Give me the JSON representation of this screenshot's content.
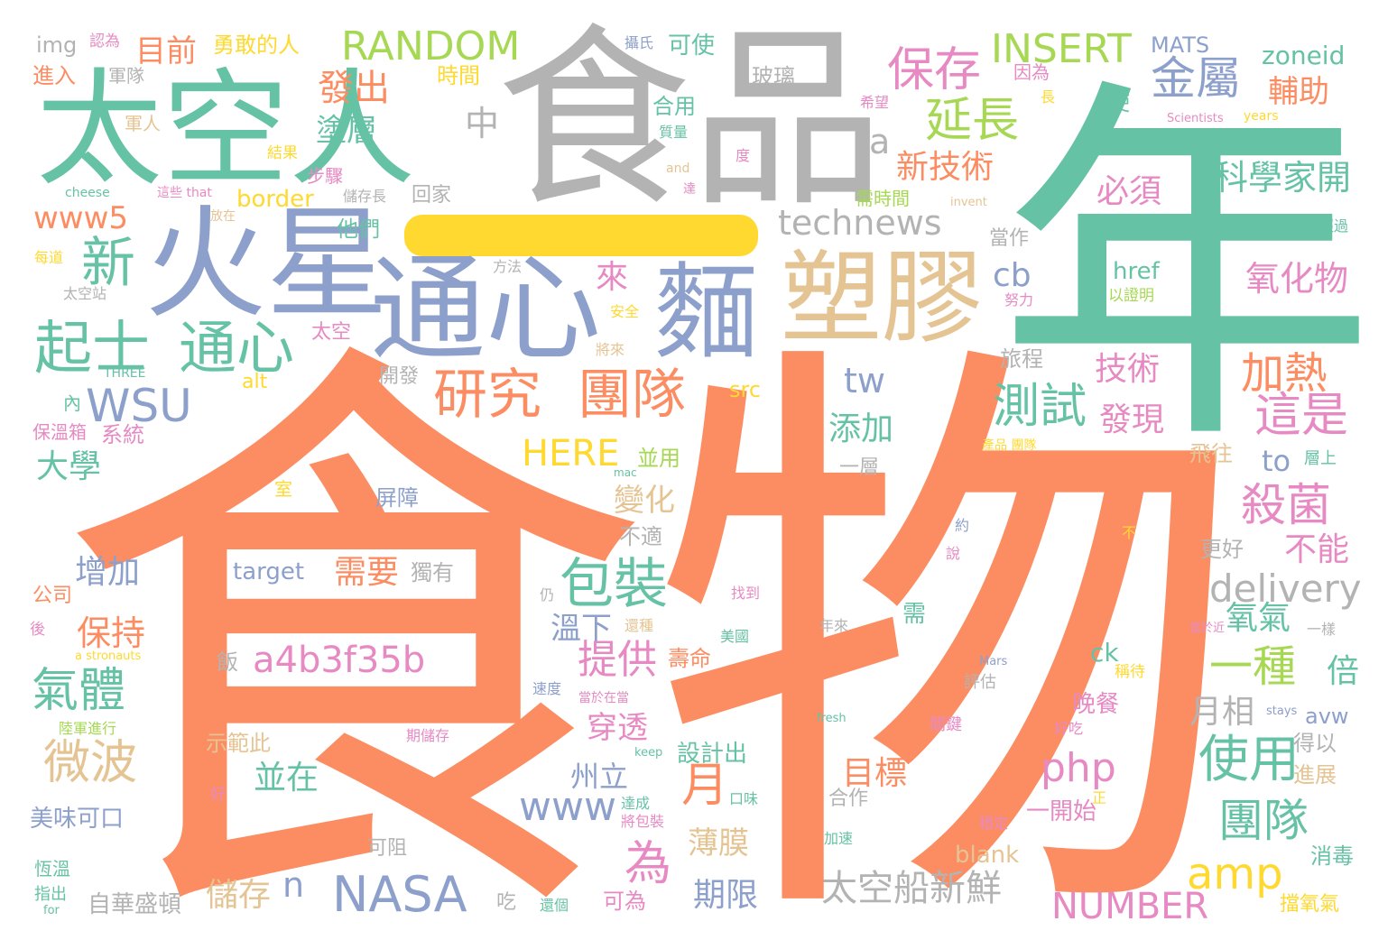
{
  "palette": {
    "orange": "#fc8d62",
    "teal": "#66c2a5",
    "blue": "#8da0cb",
    "pink": "#e78ac3",
    "green": "#a6d854",
    "yellow": "#ffd92f",
    "tan": "#e5c494",
    "gray": "#b3b3b3"
  },
  "words": [
    {
      "t": "食物",
      "c": "orange"
    },
    {
      "t": "年",
      "c": "teal"
    },
    {
      "t": "食品",
      "c": "gray"
    },
    {
      "t": "太空人",
      "c": "teal"
    },
    {
      "t": "火星",
      "c": "blue"
    },
    {
      "t": "通心",
      "c": "blue"
    },
    {
      "t": "麵",
      "c": "blue"
    },
    {
      "t": "塑膠",
      "c": "tan"
    },
    {
      "t": "起士",
      "c": "teal"
    },
    {
      "t": "通心",
      "c": "teal"
    },
    {
      "t": "新",
      "c": "teal"
    },
    {
      "t": "WSU",
      "c": "blue"
    },
    {
      "t": "www5",
      "c": "orange"
    },
    {
      "t": "研究",
      "c": "orange"
    },
    {
      "t": "團隊",
      "c": "orange"
    },
    {
      "t": "technews",
      "c": "gray"
    },
    {
      "t": "保存",
      "c": "pink"
    },
    {
      "t": "延長",
      "c": "green"
    },
    {
      "t": "金屬",
      "c": "blue"
    },
    {
      "t": "INSERT",
      "c": "green"
    },
    {
      "t": "RANDOM",
      "c": "green"
    },
    {
      "t": "目前",
      "c": "orange"
    },
    {
      "t": "發出",
      "c": "orange"
    },
    {
      "t": "塗層",
      "c": "teal"
    },
    {
      "t": "新技術",
      "c": "orange"
    },
    {
      "t": "科學家開",
      "c": "teal"
    },
    {
      "t": "氧化物",
      "c": "pink"
    },
    {
      "t": "加熱",
      "c": "orange"
    },
    {
      "t": "這是",
      "c": "pink"
    },
    {
      "t": "測試",
      "c": "teal"
    },
    {
      "t": "技術",
      "c": "pink"
    },
    {
      "t": "發現",
      "c": "pink"
    },
    {
      "t": "殺菌",
      "c": "pink"
    },
    {
      "t": "包裝",
      "c": "teal"
    },
    {
      "t": "delivery",
      "c": "gray"
    },
    {
      "t": "一種",
      "c": "green"
    },
    {
      "t": "不能",
      "c": "pink"
    },
    {
      "t": "氧氣",
      "c": "teal"
    },
    {
      "t": "倍",
      "c": "teal"
    },
    {
      "t": "a4b3f35b",
      "c": "pink"
    },
    {
      "t": "提供",
      "c": "pink"
    },
    {
      "t": "氣體",
      "c": "teal"
    },
    {
      "t": "微波",
      "c": "tan"
    },
    {
      "t": "保持",
      "c": "orange"
    },
    {
      "t": "增加",
      "c": "blue"
    },
    {
      "t": "大學",
      "c": "teal"
    },
    {
      "t": "使用",
      "c": "teal"
    },
    {
      "t": "團隊",
      "c": "teal"
    },
    {
      "t": "amp",
      "c": "yellow"
    },
    {
      "t": "NASA",
      "c": "blue"
    },
    {
      "t": "NUMBER",
      "c": "pink"
    },
    {
      "t": "太空船新鮮",
      "c": "gray"
    },
    {
      "t": "月",
      "c": "orange"
    },
    {
      "t": "php",
      "c": "pink"
    },
    {
      "t": "www",
      "c": "blue"
    },
    {
      "t": "為",
      "c": "pink"
    },
    {
      "t": "目標",
      "c": "orange"
    },
    {
      "t": "HERE",
      "c": "yellow"
    },
    {
      "t": "變化",
      "c": "tan"
    },
    {
      "t": "需要",
      "c": "orange"
    },
    {
      "t": "添加",
      "c": "teal"
    },
    {
      "t": "tw",
      "c": "blue"
    },
    {
      "t": "cb",
      "c": "blue"
    },
    {
      "t": "來",
      "c": "pink"
    },
    {
      "t": "必須",
      "c": "pink"
    },
    {
      "t": "輔助",
      "c": "orange"
    },
    {
      "t": "中",
      "c": "gray"
    },
    {
      "t": "a",
      "c": "gray"
    },
    {
      "t": "月相",
      "c": "gray"
    },
    {
      "t": "州立",
      "c": "blue"
    },
    {
      "t": "並在",
      "c": "teal"
    },
    {
      "t": "儲存",
      "c": "tan"
    },
    {
      "t": "期限",
      "c": "blue"
    },
    {
      "t": "薄膜",
      "c": "tan"
    },
    {
      "t": "穿透",
      "c": "pink"
    },
    {
      "t": "溫下",
      "c": "blue"
    },
    {
      "t": "n",
      "c": "blue"
    },
    {
      "t": "to",
      "c": "blue"
    },
    {
      "t": "zoneid",
      "c": "teal"
    },
    {
      "t": "MATS",
      "c": "blue"
    },
    {
      "t": "border",
      "c": "yellow"
    },
    {
      "t": "target",
      "c": "blue"
    },
    {
      "t": "勇敢的人",
      "c": "yellow"
    },
    {
      "t": "玻璃",
      "c": "gray"
    },
    {
      "t": "img",
      "c": "gray"
    },
    {
      "t": "系統",
      "c": "pink"
    },
    {
      "t": "美味可口",
      "c": "blue"
    },
    {
      "t": "自華盛頓",
      "c": "gray"
    },
    {
      "t": "設計出",
      "c": "teal"
    },
    {
      "t": "一開始",
      "c": "pink"
    },
    {
      "t": "晚餐",
      "c": "pink"
    },
    {
      "t": "壽命",
      "c": "orange"
    },
    {
      "t": "獨有",
      "c": "gray"
    },
    {
      "t": "飯",
      "c": "gray"
    },
    {
      "t": "示範此",
      "c": "tan"
    },
    {
      "t": "時間",
      "c": "yellow"
    },
    {
      "t": "他們",
      "c": "teal"
    },
    {
      "t": "屏障",
      "c": "blue"
    },
    {
      "t": "不適",
      "c": "gray"
    },
    {
      "t": "並用",
      "c": "green"
    },
    {
      "t": "一層",
      "c": "gray"
    },
    {
      "t": "開發",
      "c": "gray"
    },
    {
      "t": "旅程",
      "c": "gray"
    },
    {
      "t": "飛往",
      "c": "tan"
    },
    {
      "t": "更好",
      "c": "gray"
    },
    {
      "t": "消毒",
      "c": "teal"
    },
    {
      "t": "擋氧氣",
      "c": "yellow"
    },
    {
      "t": "得以",
      "c": "gray"
    },
    {
      "t": "進展",
      "c": "tan"
    },
    {
      "t": "avw",
      "c": "blue"
    },
    {
      "t": "當作",
      "c": "gray"
    },
    {
      "t": "ck",
      "c": "teal"
    },
    {
      "t": "src",
      "c": "yellow"
    },
    {
      "t": "alt",
      "c": "yellow"
    },
    {
      "t": "href",
      "c": "teal"
    },
    {
      "t": "blank",
      "c": "tan"
    },
    {
      "t": "可為",
      "c": "pink"
    },
    {
      "t": "合作",
      "c": "gray"
    },
    {
      "t": "回家",
      "c": "gray"
    },
    {
      "t": "軍隊",
      "c": "gray"
    },
    {
      "t": "進入",
      "c": "orange"
    },
    {
      "t": "軍人",
      "c": "tan"
    },
    {
      "t": "步驟",
      "c": "pink"
    },
    {
      "t": "結果",
      "c": "yellow"
    },
    {
      "t": "cheese",
      "c": "teal"
    },
    {
      "t": "太空",
      "c": "pink"
    },
    {
      "t": "內",
      "c": "teal"
    },
    {
      "t": "保溫箱",
      "c": "pink"
    },
    {
      "t": "室",
      "c": "yellow"
    },
    {
      "t": "公司",
      "c": "orange"
    },
    {
      "t": "恆溫",
      "c": "teal"
    },
    {
      "t": "指出",
      "c": "teal"
    },
    {
      "t": "吃",
      "c": "gray"
    },
    {
      "t": "可阻",
      "c": "gray"
    },
    {
      "t": "需時間",
      "c": "green"
    },
    {
      "t": "因為",
      "c": "pink"
    },
    {
      "t": "使",
      "c": "teal"
    },
    {
      "t": "可使",
      "c": "teal"
    },
    {
      "t": "攝氏",
      "c": "blue"
    },
    {
      "t": "合用",
      "c": "teal"
    },
    {
      "t": "認為",
      "c": "pink"
    },
    {
      "t": "努力",
      "c": "pink"
    },
    {
      "t": "以證明",
      "c": "green"
    },
    {
      "t": "經過",
      "c": "teal"
    },
    {
      "t": "years",
      "c": "yellow"
    },
    {
      "t": "Scientists",
      "c": "pink"
    },
    {
      "t": "希望",
      "c": "pink"
    },
    {
      "t": "長",
      "c": "yellow"
    },
    {
      "t": "質量",
      "c": "teal"
    },
    {
      "t": "度",
      "c": "pink"
    },
    {
      "t": "and",
      "c": "tan"
    },
    {
      "t": "達",
      "c": "pink"
    },
    {
      "t": "安全",
      "c": "yellow"
    },
    {
      "t": "將來",
      "c": "tan"
    },
    {
      "t": "方法",
      "c": "gray"
    },
    {
      "t": "每道",
      "c": "yellow"
    },
    {
      "t": "太空站",
      "c": "gray"
    },
    {
      "t": "THREE",
      "c": "teal"
    },
    {
      "t": "放在",
      "c": "tan"
    },
    {
      "t": "這些 that",
      "c": "pink"
    },
    {
      "t": "儲存長",
      "c": "gray"
    },
    {
      "t": "invent",
      "c": "tan"
    },
    {
      "t": "產品 團隊",
      "c": "yellow"
    },
    {
      "t": "層上",
      "c": "teal"
    },
    {
      "t": "mac",
      "c": "teal"
    },
    {
      "t": "約",
      "c": "blue"
    },
    {
      "t": "說",
      "c": "pink"
    },
    {
      "t": "仍",
      "c": "gray"
    },
    {
      "t": "找到",
      "c": "pink"
    },
    {
      "t": "還種",
      "c": "tan"
    },
    {
      "t": "美國",
      "c": "teal"
    },
    {
      "t": "年來",
      "c": "gray"
    },
    {
      "t": "需",
      "c": "teal"
    },
    {
      "t": "一樣",
      "c": "gray"
    },
    {
      "t": "當於近",
      "c": "pink"
    },
    {
      "t": "稱待",
      "c": "yellow"
    },
    {
      "t": "評估",
      "c": "gray"
    },
    {
      "t": "Mars",
      "c": "blue"
    },
    {
      "t": "stays",
      "c": "blue"
    },
    {
      "t": "好吃",
      "c": "pink"
    },
    {
      "t": "關鍵",
      "c": "pink"
    },
    {
      "t": "fresh",
      "c": "teal"
    },
    {
      "t": "keep",
      "c": "teal"
    },
    {
      "t": "期儲存",
      "c": "pink"
    },
    {
      "t": "當於在當",
      "c": "pink"
    },
    {
      "t": "速度",
      "c": "blue"
    },
    {
      "t": "陸軍進行",
      "c": "green"
    },
    {
      "t": "a stronauts",
      "c": "yellow"
    },
    {
      "t": "後",
      "c": "pink"
    },
    {
      "t": "好",
      "c": "pink"
    },
    {
      "t": "口味",
      "c": "teal"
    },
    {
      "t": "達成",
      "c": "teal"
    },
    {
      "t": "將包裝",
      "c": "pink"
    },
    {
      "t": "加速",
      "c": "teal"
    },
    {
      "t": "穩定",
      "c": "pink"
    },
    {
      "t": "正",
      "c": "yellow"
    },
    {
      "t": "還個",
      "c": "teal"
    },
    {
      "t": "for",
      "c": "teal"
    },
    {
      "t": "不",
      "c": "yellow"
    }
  ]
}
